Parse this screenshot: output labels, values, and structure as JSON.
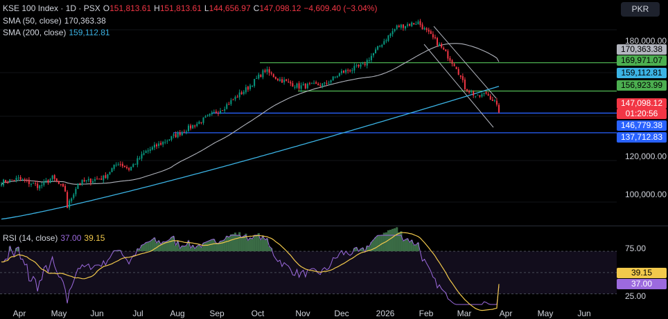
{
  "header": {
    "symbol": "KSE 100 Index · 1D · PSX",
    "o_label": "O",
    "o_value": "151,813.61",
    "h_label": "H",
    "h_value": "151,813.61",
    "l_label": "L",
    "l_value": "144,656.97",
    "c_label": "C",
    "c_value": "147,098.12",
    "change": "−4,609.40 (−3.04%)",
    "sma50_label": "SMA (50, close)",
    "sma50_value": "170,363.38",
    "sma200_label": "SMA (200, close)",
    "sma200_value": "159,112.81",
    "rsi_label": "RSI (14, close)",
    "rsi_value": "37.00",
    "rsi_ma_value": "39.15"
  },
  "currency": "PKR",
  "price_axis": [
    "180,000.00",
    "120,000.00",
    "100,000.00"
  ],
  "price_labels": [
    {
      "text": "170,363.38",
      "color": "#b2b5be",
      "text_color": "#000000"
    },
    {
      "text": "169,971.07",
      "color": "#4caf50",
      "text_color": "#000000"
    },
    {
      "text": "159,112.81",
      "color": "#3bb3e4",
      "text_color": "#000000"
    },
    {
      "text": "156,923.99",
      "color": "#4caf50",
      "text_color": "#000000"
    },
    {
      "text": "147,098.12",
      "color": "#f23645",
      "text_color": "#ffffff"
    },
    {
      "text": "01:20:56",
      "color": "#f23645",
      "text_color": "#ffffff"
    },
    {
      "text": "146,779.38",
      "color": "#2962ff",
      "text_color": "#ffffff"
    },
    {
      "text": "137,712.83",
      "color": "#2962ff",
      "text_color": "#ffffff"
    }
  ],
  "rsi_axis": [
    "75.00",
    "25.00"
  ],
  "rsi_labels": [
    {
      "text": "39.15",
      "color": "#f2c94c",
      "text_color": "#000000"
    },
    {
      "text": "37.00",
      "color": "#9c6ade",
      "text_color": "#ffffff"
    }
  ],
  "x_axis": [
    "Apr",
    "May",
    "Jun",
    "Jul",
    "Aug",
    "Sep",
    "Oct",
    "Nov",
    "Dec",
    "2026",
    "Feb",
    "Mar",
    "Apr",
    "May",
    "Jun"
  ],
  "colors": {
    "up": "#089981",
    "down": "#f23645",
    "sma50": "#b2b5be",
    "sma200": "#3bb3e4",
    "rsi": "#9c6ade",
    "rsi_ma": "#f2c94c",
    "hline_green": "#4caf50",
    "hline_blue": "#2962ff"
  },
  "chart_data": {
    "type": "candlestick",
    "price_ylim": [
      95000,
      195000
    ],
    "horizontal_levels": [
      169971.07,
      156923.99,
      146779.38,
      137712.83
    ],
    "sma50_last": 170363.38,
    "sma200_last": 159112.81,
    "last_close": 147098.12,
    "close_path": [
      {
        "x": "Apr",
        "y": 116000
      },
      {
        "x": "May",
        "y": 112000
      },
      {
        "x": "May",
        "y": 104000
      },
      {
        "x": "Jun",
        "y": 119000
      },
      {
        "x": "Jul",
        "y": 125000
      },
      {
        "x": "Aug",
        "y": 138000
      },
      {
        "x": "Sep",
        "y": 150000
      },
      {
        "x": "Oct",
        "y": 166000
      },
      {
        "x": "Nov",
        "y": 161000
      },
      {
        "x": "Dec",
        "y": 165000
      },
      {
        "x": "2026",
        "y": 180000
      },
      {
        "x": "Feb",
        "y": 188000
      },
      {
        "x": "Feb",
        "y": 172000
      },
      {
        "x": "Mar",
        "y": 152000
      },
      {
        "x": "Apr",
        "y": 147098.12
      }
    ],
    "rsi_ylim": [
      20,
      85
    ],
    "rsi_levels": [
      70,
      50,
      30
    ],
    "rsi_last": 37.0,
    "rsi_ma_last": 39.15
  }
}
